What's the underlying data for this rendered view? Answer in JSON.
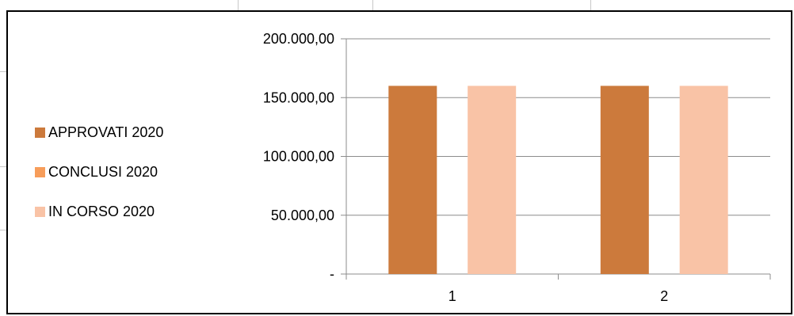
{
  "chart_data": {
    "type": "bar",
    "categories": [
      "1",
      "2"
    ],
    "series": [
      {
        "name": "APPROVATI 2020",
        "color": "#cc7a3c",
        "values": [
          160000,
          160000
        ]
      },
      {
        "name": "CONCLUSI 2020",
        "color": "#f79d5a",
        "values": [
          0,
          0
        ]
      },
      {
        "name": "IN CORSO 2020",
        "color": "#f9c3a6",
        "values": [
          160000,
          160000
        ]
      }
    ],
    "ylim": [
      0,
      200000
    ],
    "yticks": [
      0,
      50000,
      100000,
      150000,
      200000
    ],
    "ytick_labels": [
      "-",
      "50.000,00",
      "100.000,00",
      "150.000,00",
      "200.000,00"
    ],
    "grid": true,
    "legend_position": "left"
  }
}
